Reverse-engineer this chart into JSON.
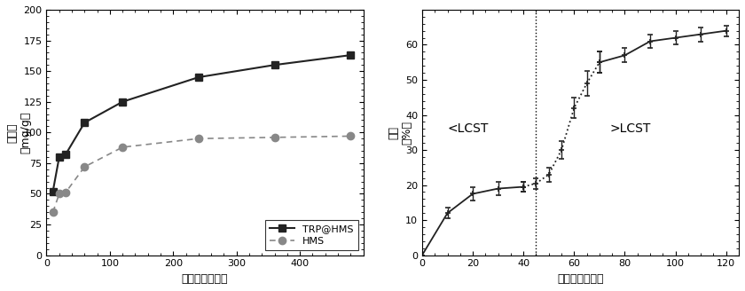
{
  "left": {
    "trp_x": [
      10,
      20,
      30,
      60,
      120,
      240,
      360,
      480
    ],
    "trp_y": [
      52,
      80,
      82,
      108,
      125,
      145,
      155,
      163
    ],
    "hms_x": [
      10,
      20,
      30,
      60,
      120,
      240,
      360,
      480
    ],
    "hms_y": [
      35,
      50,
      51,
      72,
      88,
      95,
      96,
      97
    ],
    "xlim": [
      0,
      500
    ],
    "ylim": [
      0,
      200
    ],
    "xticks": [
      0,
      100,
      200,
      300,
      400
    ],
    "yticks": [
      0,
      25,
      50,
      75,
      100,
      125,
      150,
      175,
      200
    ],
    "xlabel": "时间　（分钟）",
    "ylabel_chars": [
      "吸",
      "附",
      "量",
      " ",
      "（mg/g）"
    ],
    "ylabel_line1": "吸附量",
    "ylabel_line2": "（mg/g）",
    "legend1": "TRP@HMS",
    "legend2": "HMS",
    "trp_color": "#222222",
    "hms_color": "#888888"
  },
  "right": {
    "solid_x": [
      0,
      10,
      20,
      30,
      40
    ],
    "solid_y": [
      0,
      12,
      17.5,
      19,
      19.5
    ],
    "solid_yerr": [
      0,
      1.5,
      2.0,
      2.0,
      1.5
    ],
    "dotted_x": [
      40,
      45,
      50,
      55,
      60,
      65,
      70
    ],
    "dotted_y": [
      19.5,
      20.5,
      23,
      30,
      42,
      49,
      55
    ],
    "dotted_yerr": [
      1.5,
      1.5,
      2.0,
      2.5,
      3.0,
      3.5,
      3.0
    ],
    "solid2_x": [
      70,
      80,
      90,
      100,
      110,
      120
    ],
    "solid2_y": [
      55,
      57,
      61,
      62,
      63,
      64
    ],
    "solid2_yerr": [
      3.0,
      2.0,
      2.0,
      2.0,
      2.0,
      1.5
    ],
    "vline_x": 45,
    "xlim": [
      0,
      125
    ],
    "ylim": [
      0,
      70
    ],
    "xticks": [
      0,
      20,
      40,
      60,
      80,
      100,
      120
    ],
    "yticks": [
      0,
      10,
      20,
      30,
      40,
      50,
      60
    ],
    "xlabel": "时间　（分钟）",
    "ylabel_line1": "释放",
    "ylabel_line2": "（%）",
    "lcst_less": "<LCST",
    "lcst_more": ">LCST",
    "color": "#222222"
  }
}
